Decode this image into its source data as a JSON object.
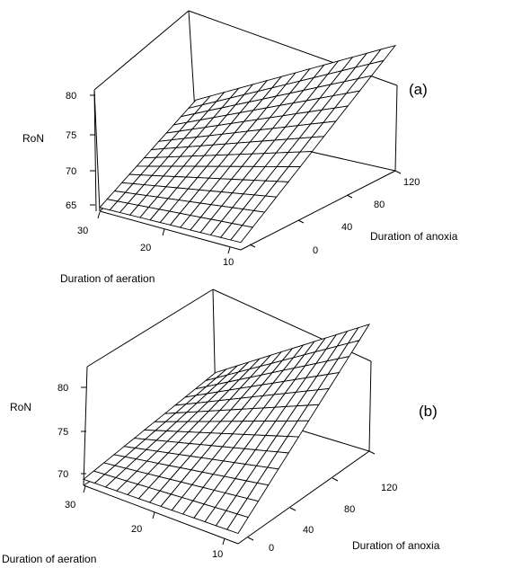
{
  "chart_data": [
    {
      "type": "surface",
      "panel_label": "(a)",
      "xlabel": "Duration of aeration",
      "ylabel": "Duration of anoxia",
      "zlabel": "RoN",
      "xticks": [
        "30",
        "20",
        "10"
      ],
      "yticks": [
        "0",
        "40",
        "80",
        "120"
      ],
      "zticks": [
        "65",
        "70",
        "75",
        "80"
      ],
      "xlim": [
        8,
        30
      ],
      "ylim": [
        0,
        120
      ],
      "zlim": [
        65,
        82
      ],
      "grid_size": [
        14,
        13
      ],
      "corner_values": {
        "aeration_30_anoxia_0": 65.5,
        "aeration_8_anoxia_0": 66,
        "aeration_30_anoxia_120": 68.5,
        "aeration_8_anoxia_120": 82
      }
    },
    {
      "type": "surface",
      "panel_label": "(b)",
      "xlabel": "Duration of aeration",
      "ylabel": "Duration of anoxia",
      "zlabel": "RoN",
      "xticks": [
        "30",
        "20",
        "10"
      ],
      "yticks": [
        "0",
        "40",
        "80",
        "120"
      ],
      "zticks": [
        "70",
        "75",
        "80"
      ],
      "xlim": [
        8,
        30
      ],
      "ylim": [
        0,
        120
      ],
      "zlim": [
        69,
        84
      ],
      "grid_size": [
        14,
        13
      ],
      "corner_values": {
        "aeration_30_anoxia_0": 70,
        "aeration_8_anoxia_0": 70.5,
        "aeration_30_anoxia_120": 73,
        "aeration_8_anoxia_120": 84
      }
    }
  ]
}
